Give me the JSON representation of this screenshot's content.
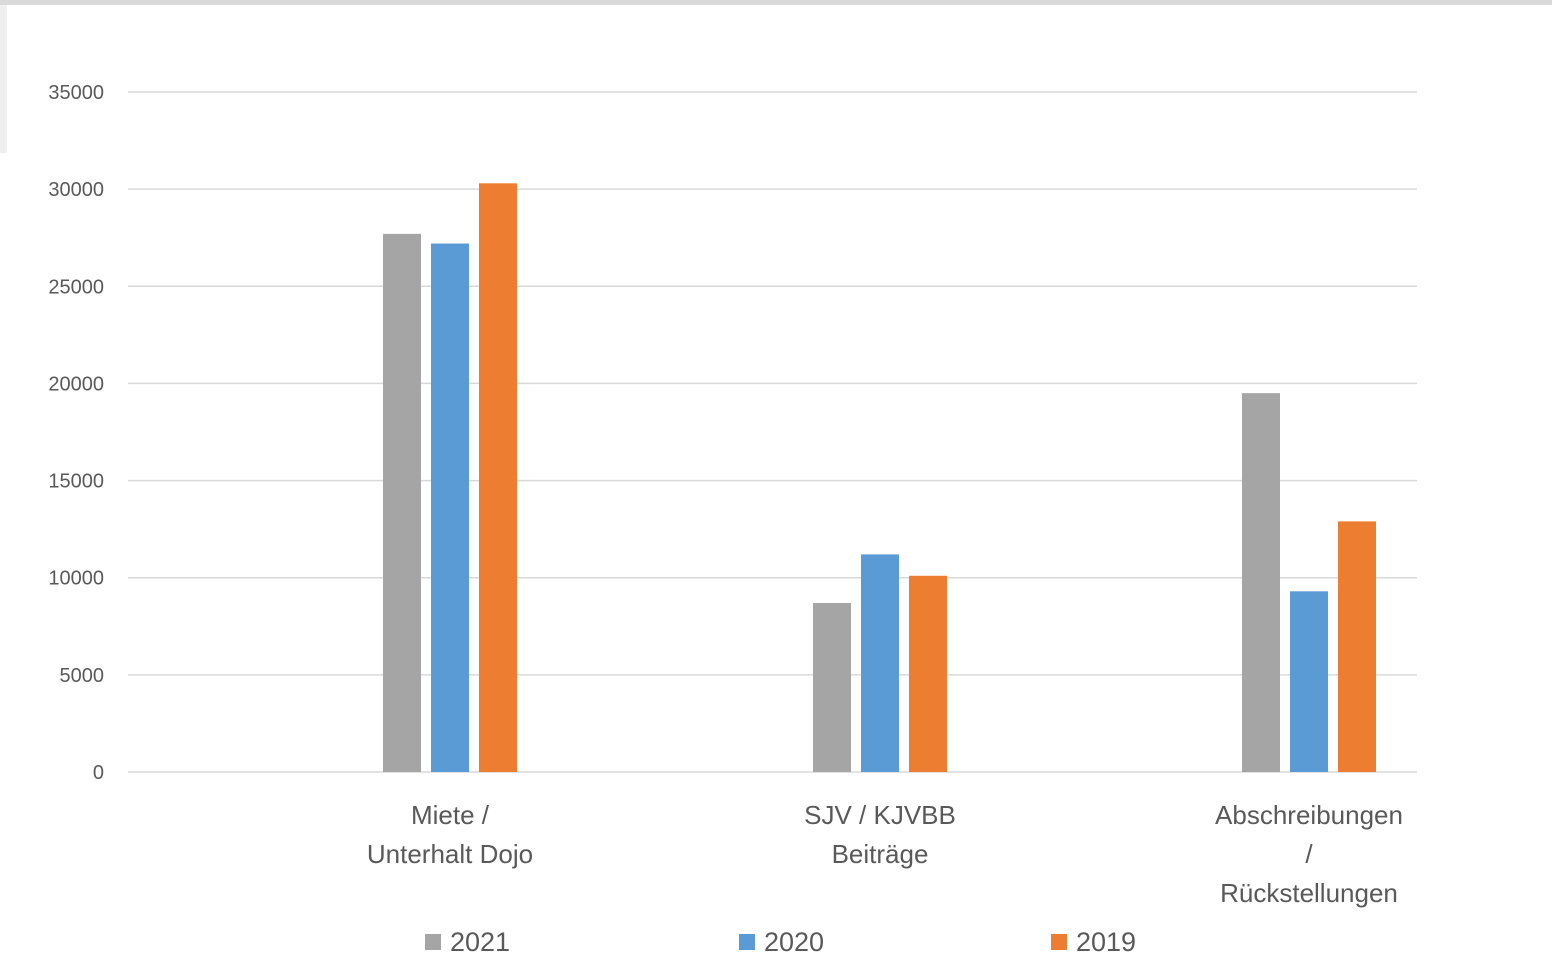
{
  "chart_data": {
    "type": "bar",
    "categories": [
      [
        "Miete /",
        "Unterhalt Dojo"
      ],
      [
        "SJV / KJVBB",
        "Beiträge"
      ],
      [
        "Abschreibungen",
        "/",
        "Rückstellungen"
      ]
    ],
    "series": [
      {
        "name": "2021",
        "color": "#a5a5a5",
        "values": [
          27700,
          8700,
          19500
        ]
      },
      {
        "name": "2020",
        "color": "#5b9bd5",
        "values": [
          27200,
          11200,
          9300
        ]
      },
      {
        "name": "2019",
        "color": "#ed7d31",
        "values": [
          30300,
          10100,
          12900
        ]
      }
    ],
    "ylim": [
      0,
      35000
    ],
    "yticks": [
      0,
      5000,
      10000,
      15000,
      20000,
      25000,
      30000,
      35000
    ],
    "grid": true,
    "legend_position": "bottom",
    "gridline_color": "#d9d9d9",
    "tick_label_color": "#595959"
  }
}
